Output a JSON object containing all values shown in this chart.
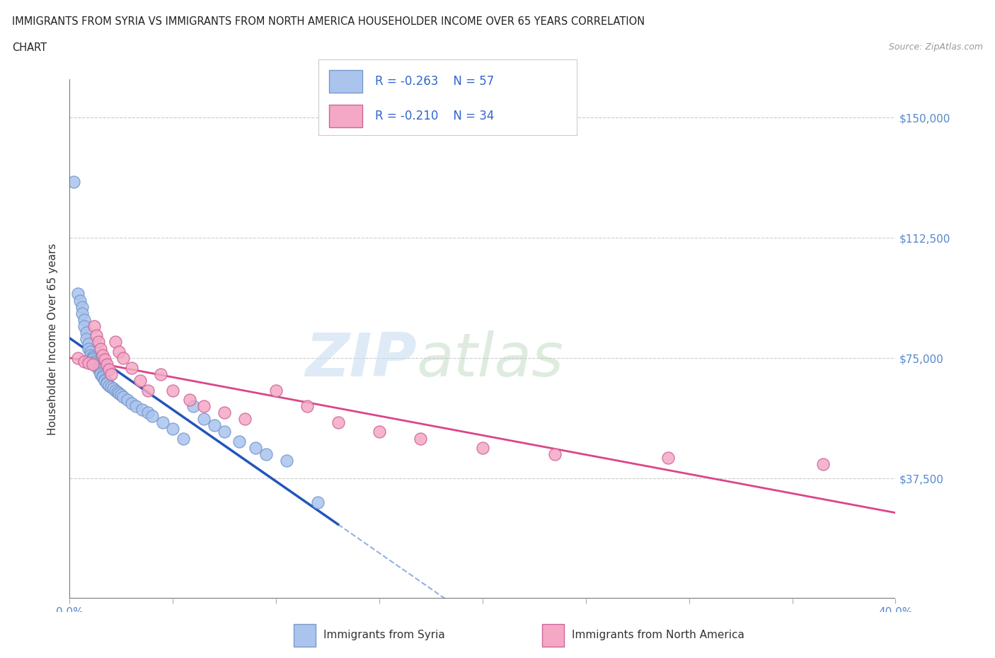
{
  "title_line1": "IMMIGRANTS FROM SYRIA VS IMMIGRANTS FROM NORTH AMERICA HOUSEHOLDER INCOME OVER 65 YEARS CORRELATION",
  "title_line2": "CHART",
  "source": "Source: ZipAtlas.com",
  "ylabel": "Householder Income Over 65 years",
  "yticks": [
    37500,
    75000,
    112500,
    150000
  ],
  "ytick_labels": [
    "$37,500",
    "$75,000",
    "$112,500",
    "$150,000"
  ],
  "xlim": [
    0.0,
    0.4
  ],
  "ylim": [
    0,
    162000
  ],
  "legend_text1": "R = -0.263    N = 57",
  "legend_text2": "R = -0.210    N = 34",
  "syria_color": "#aac4ee",
  "syria_edge": "#7799cc",
  "north_america_color": "#f5a8c5",
  "north_america_edge": "#cc6699",
  "trend_syria_color": "#2255bb",
  "trend_north_america_color": "#dd4488",
  "trend_dashed_color": "#88aadd",
  "watermark_zip": "ZIP",
  "watermark_atlas": "atlas",
  "syria_x": [
    0.002,
    0.004,
    0.005,
    0.006,
    0.006,
    0.007,
    0.007,
    0.008,
    0.008,
    0.009,
    0.009,
    0.01,
    0.01,
    0.011,
    0.011,
    0.011,
    0.012,
    0.012,
    0.013,
    0.013,
    0.014,
    0.014,
    0.015,
    0.015,
    0.015,
    0.016,
    0.016,
    0.017,
    0.017,
    0.018,
    0.018,
    0.019,
    0.02,
    0.021,
    0.022,
    0.023,
    0.024,
    0.025,
    0.026,
    0.028,
    0.03,
    0.032,
    0.035,
    0.038,
    0.04,
    0.045,
    0.05,
    0.055,
    0.06,
    0.065,
    0.07,
    0.075,
    0.082,
    0.09,
    0.095,
    0.105,
    0.12
  ],
  "syria_y": [
    130000,
    95000,
    93000,
    91000,
    89000,
    87000,
    85000,
    83000,
    81000,
    79500,
    78000,
    77000,
    76000,
    75500,
    75000,
    74500,
    74000,
    73500,
    73000,
    72500,
    72000,
    71500,
    71000,
    70500,
    70000,
    69500,
    69000,
    68500,
    68000,
    67500,
    67000,
    66500,
    66000,
    65500,
    65000,
    64500,
    64000,
    63500,
    63000,
    62000,
    61000,
    60000,
    59000,
    58000,
    57000,
    55000,
    53000,
    50000,
    60000,
    56000,
    54000,
    52000,
    49000,
    47000,
    45000,
    43000,
    30000
  ],
  "north_america_x": [
    0.004,
    0.007,
    0.009,
    0.011,
    0.012,
    0.013,
    0.014,
    0.015,
    0.016,
    0.017,
    0.018,
    0.019,
    0.02,
    0.022,
    0.024,
    0.026,
    0.03,
    0.034,
    0.038,
    0.044,
    0.05,
    0.058,
    0.065,
    0.075,
    0.085,
    0.1,
    0.115,
    0.13,
    0.15,
    0.17,
    0.2,
    0.235,
    0.29,
    0.365
  ],
  "north_america_y": [
    75000,
    74000,
    73500,
    73000,
    85000,
    82000,
    80000,
    78000,
    76000,
    74500,
    73000,
    71500,
    70000,
    80000,
    77000,
    75000,
    72000,
    68000,
    65000,
    70000,
    65000,
    62000,
    60000,
    58000,
    56000,
    65000,
    60000,
    55000,
    52000,
    50000,
    47000,
    45000,
    44000,
    42000
  ]
}
